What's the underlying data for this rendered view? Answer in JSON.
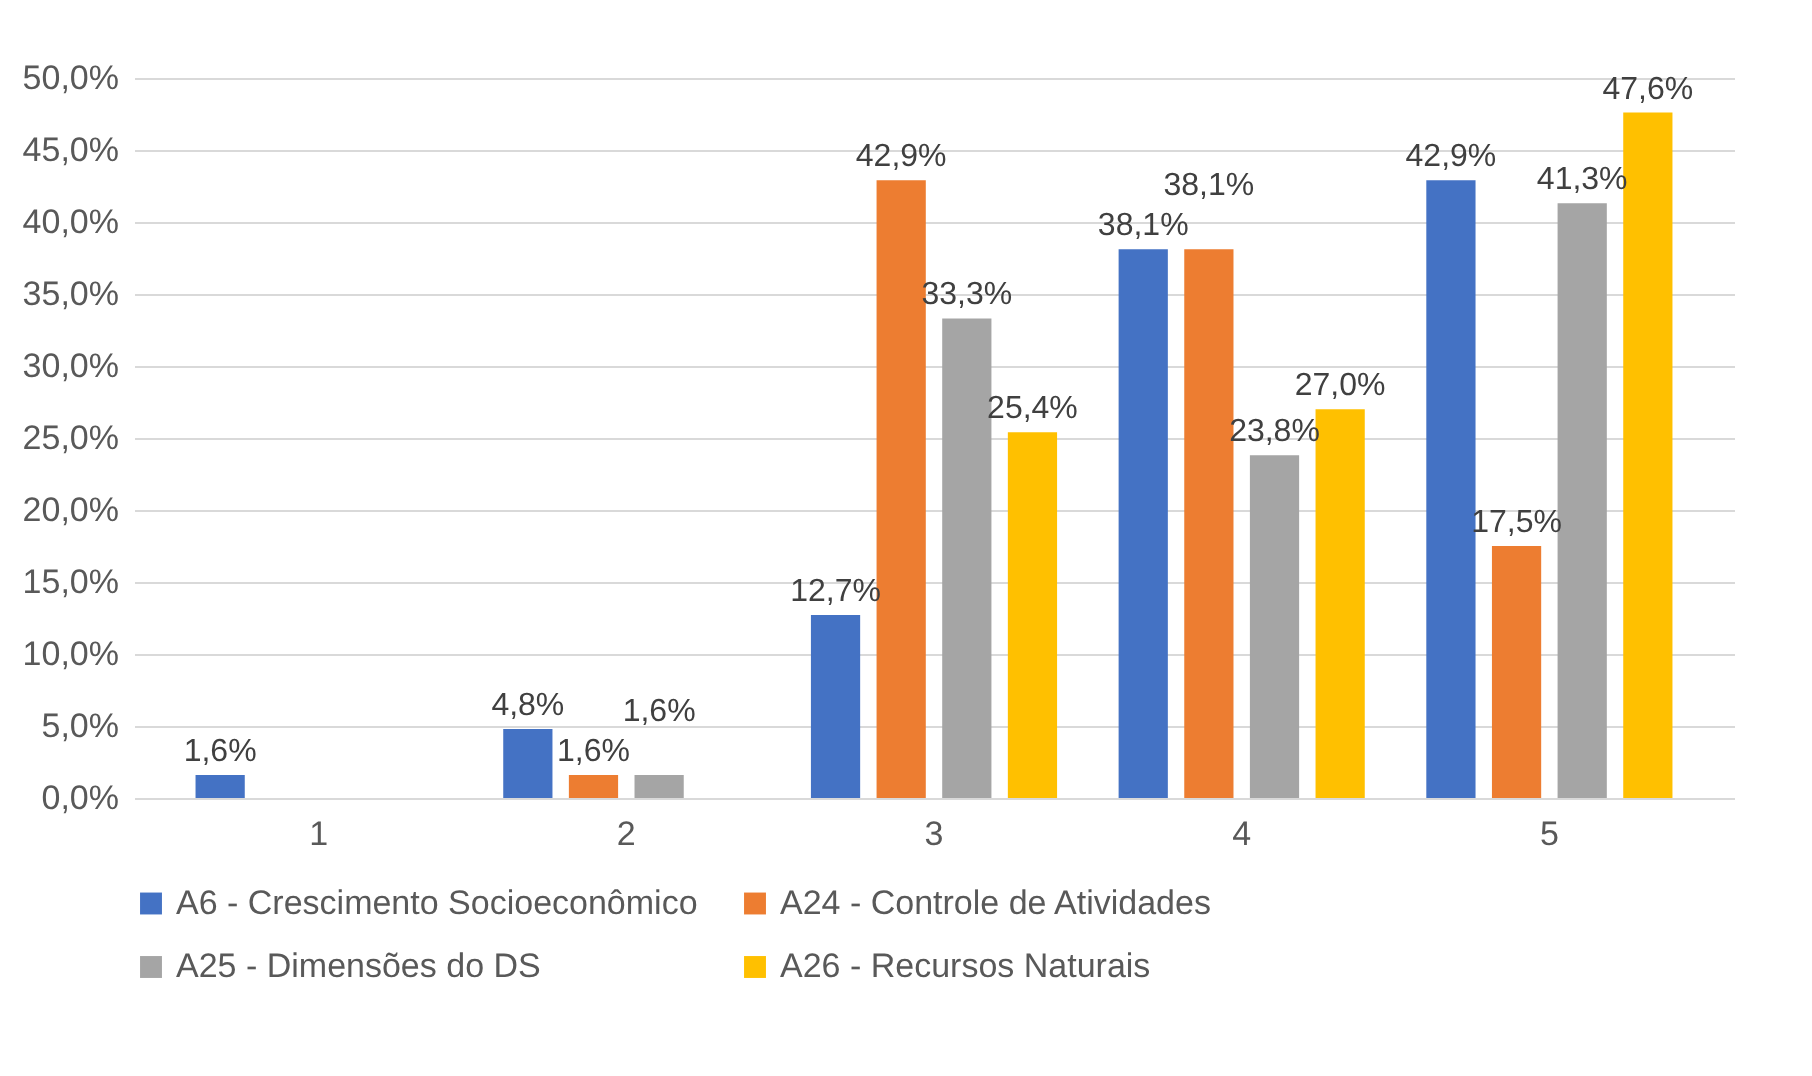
{
  "chart_data": {
    "type": "bar",
    "categories": [
      "1",
      "2",
      "3",
      "4",
      "5"
    ],
    "series": [
      {
        "name": "A6 - Crescimento Socioeconômico",
        "color": "#4472c4",
        "values": [
          1.6,
          4.8,
          12.7,
          38.1,
          42.9
        ],
        "value_labels": [
          "1,6%",
          "4,8%",
          "12,7%",
          "38,1%",
          "42,9%"
        ]
      },
      {
        "name": "A24 - Controle de Atividades",
        "color": "#ed7d31",
        "values": [
          null,
          1.6,
          42.9,
          38.1,
          17.5
        ],
        "value_labels": [
          null,
          "1,6%",
          "42,9%",
          "38,1%",
          "17,5%"
        ]
      },
      {
        "name": "A25 - Dimensões do DS",
        "color": "#a5a5a5",
        "values": [
          null,
          1.6,
          33.3,
          23.8,
          41.3
        ],
        "value_labels": [
          null,
          "1,6%",
          "33,3%",
          "23,8%",
          "41,3%"
        ]
      },
      {
        "name": "A26 - Recursos Naturais",
        "color": "#ffc000",
        "values": [
          null,
          null,
          25.4,
          27.0,
          47.6
        ],
        "value_labels": [
          null,
          null,
          "25,4%",
          "27,0%",
          "47,6%"
        ]
      }
    ],
    "ylim": [
      0,
      50
    ],
    "yticks": [
      {
        "value": 0,
        "label": "0,0%"
      },
      {
        "value": 5,
        "label": "5,0%"
      },
      {
        "value": 10,
        "label": "10,0%"
      },
      {
        "value": 15,
        "label": "15,0%"
      },
      {
        "value": 20,
        "label": "20,0%"
      },
      {
        "value": 25,
        "label": "25,0%"
      },
      {
        "value": 30,
        "label": "30,0%"
      },
      {
        "value": 35,
        "label": "35,0%"
      },
      {
        "value": 40,
        "label": "40,0%"
      },
      {
        "value": 45,
        "label": "45,0%"
      },
      {
        "value": 50,
        "label": "50,0%"
      }
    ],
    "grid": "y",
    "legend": "bottom"
  }
}
